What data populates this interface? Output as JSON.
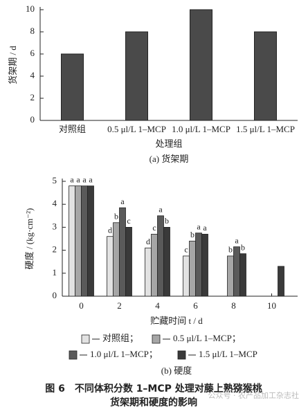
{
  "chart_data": [
    {
      "type": "bar",
      "ylabel": "货架期 / d",
      "xlabel": "处理组",
      "caption": "(a)  货架期",
      "categories": [
        "对照组",
        "0.5 μl/L 1–MCP",
        "1.0 μl/L 1–MCP",
        "1.5 μl/L 1–MCP"
      ],
      "values": [
        6,
        8,
        10,
        8
      ],
      "color": "#4a4a4a",
      "ylim": [
        0,
        10
      ],
      "yticks": [
        0,
        2,
        4,
        6,
        8,
        10
      ]
    },
    {
      "type": "grouped_bar",
      "ylabel": "硬度 / (kg·cm⁻²)",
      "xlabel": "贮藏时间 t / d",
      "caption": "(b)  硬度",
      "categories": [
        "0",
        "2",
        "4",
        "6",
        "8",
        "10"
      ],
      "series": [
        {
          "name": "对照组；",
          "color": "#e2e2e2",
          "values": [
            4.8,
            2.6,
            2.1,
            1.75,
            null,
            null
          ],
          "significance": [
            "a",
            "d",
            "d",
            "c",
            null,
            null
          ]
        },
        {
          "name": "0.5 μl/L 1–MCP；",
          "color": "#a6a6a6",
          "values": [
            4.8,
            3.2,
            2.7,
            2.4,
            1.75,
            null
          ],
          "significance": [
            "a",
            "b",
            "c",
            "b",
            "b",
            null
          ]
        },
        {
          "name": "1.0 μl/L 1–MCP；",
          "color": "#5a5a5a",
          "values": [
            4.8,
            3.85,
            3.5,
            2.75,
            2.15,
            null
          ],
          "significance": [
            "a",
            "a",
            "a",
            "a",
            "a",
            null
          ]
        },
        {
          "name": "1.5 μl/L 1–MCP",
          "color": "#3a3a3a",
          "values": [
            4.8,
            3.0,
            3.0,
            2.7,
            1.85,
            1.3
          ],
          "significance": [
            "a",
            "c",
            "b",
            "a",
            "b",
            null
          ]
        }
      ],
      "ylim": [
        0,
        5
      ],
      "yticks": [
        0,
        1,
        2,
        3,
        4,
        5
      ]
    }
  ],
  "figure_caption": [
    "图 6　不同体积分数 1–MCP 处理对藤上熟猕猴桃",
    "货架期和硬度的影响"
  ],
  "watermark": "公众号 · 农产品加工杂志社"
}
